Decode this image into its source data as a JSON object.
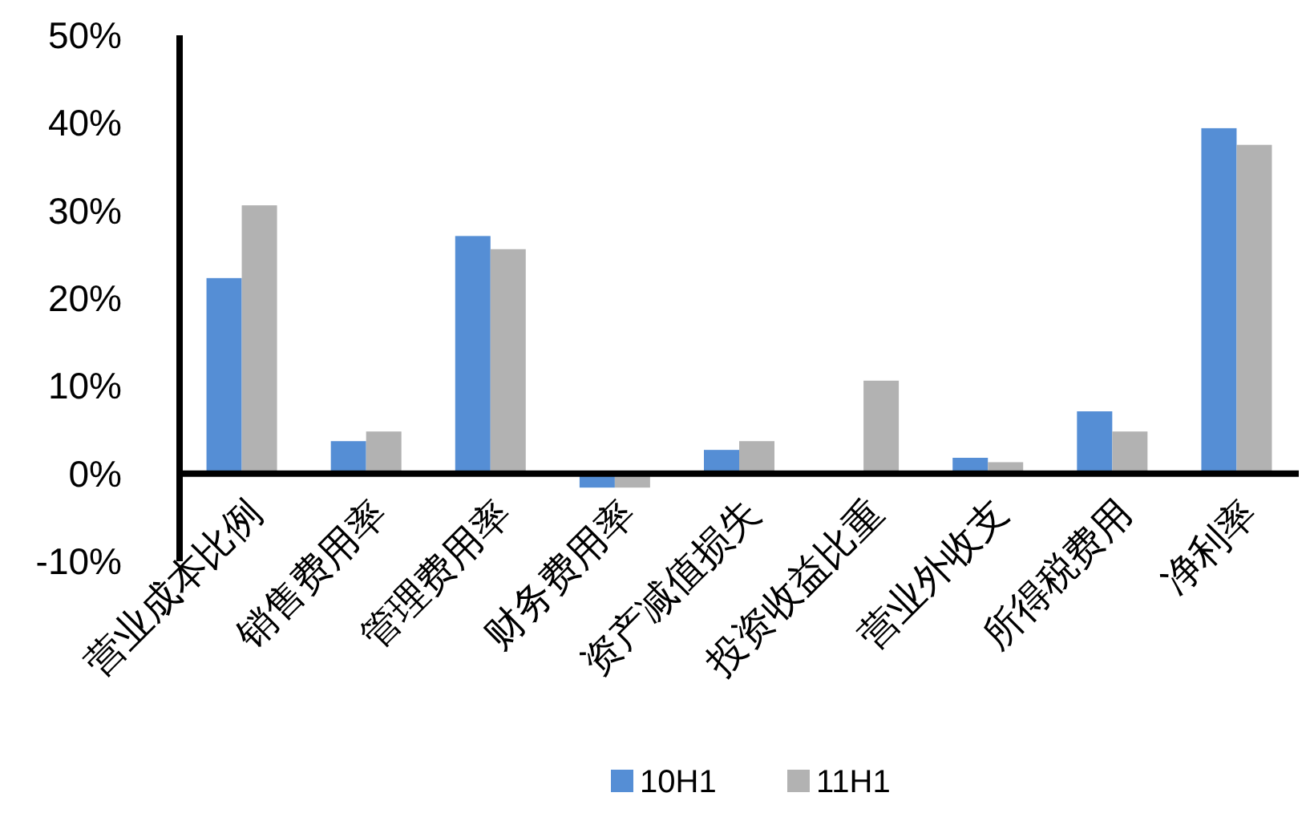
{
  "chart_data": {
    "type": "bar",
    "categories": [
      "营业成本比例",
      "销售费用率",
      "管理费用率",
      "财务费用率",
      "资产减值损失",
      "投资收益比重",
      "营业外收支",
      "所得税费用",
      "净利率"
    ],
    "series": [
      {
        "name": "10H1",
        "color": "#558ed5",
        "values": [
          22.3,
          3.7,
          27.1,
          -1.6,
          2.7,
          0,
          1.8,
          7.1,
          39.4
        ]
      },
      {
        "name": "11H1",
        "color": "#b2b2b2",
        "values": [
          30.6,
          4.8,
          25.6,
          -1.6,
          3.7,
          10.6,
          1.3,
          4.8,
          37.5
        ]
      }
    ],
    "ylim": [
      -10,
      50
    ],
    "yticks": [
      {
        "value": -10,
        "label": "-10%"
      },
      {
        "value": 0,
        "label": "0%"
      },
      {
        "value": 10,
        "label": "10%"
      },
      {
        "value": 20,
        "label": "20%"
      },
      {
        "value": 30,
        "label": "30%"
      },
      {
        "value": 40,
        "label": "40%"
      },
      {
        "value": 50,
        "label": "50%"
      }
    ],
    "legend": "bottom",
    "grid": false
  }
}
